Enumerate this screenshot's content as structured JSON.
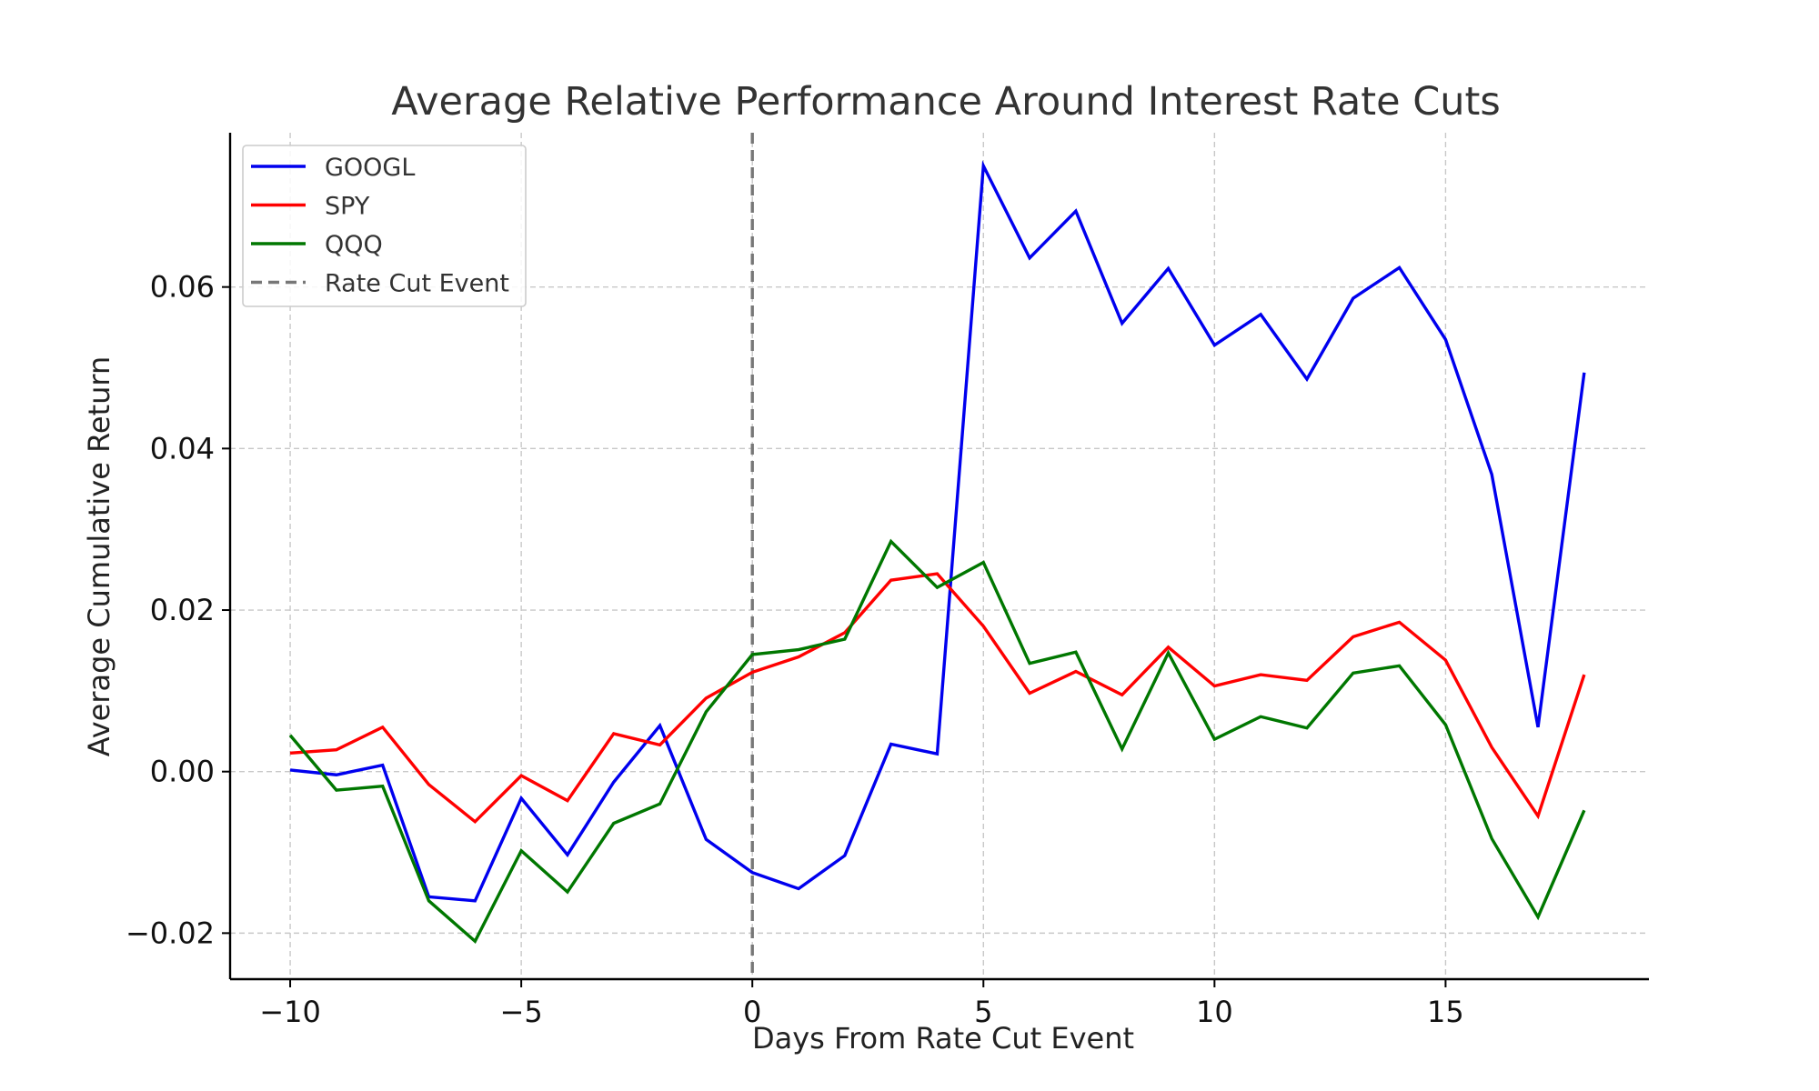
{
  "chart_data": {
    "type": "line",
    "title": "Average Relative Performance Around Interest Rate Cuts",
    "xlabel": "Days From Rate Cut Event",
    "ylabel": "Average Cumulative Return",
    "x": [
      -10,
      -9,
      -8,
      -7,
      -6,
      -5,
      -4,
      -3,
      -2,
      -1,
      0,
      1,
      2,
      3,
      4,
      5,
      6,
      7,
      8,
      9,
      10,
      11,
      12,
      13,
      14,
      15,
      16,
      17,
      18
    ],
    "xlim": [
      -11.3,
      19.4
    ],
    "ylim": [
      -0.0257,
      0.0791
    ],
    "xticks": [
      -10,
      -5,
      0,
      5,
      10,
      15
    ],
    "xtick_labels": [
      "−10",
      "−5",
      "0",
      "5",
      "10",
      "15"
    ],
    "yticks": [
      -0.02,
      0.0,
      0.02,
      0.04,
      0.06
    ],
    "ytick_labels": [
      "−0.02",
      "0.00",
      "0.02",
      "0.04",
      "0.06"
    ],
    "grid": true,
    "legend_position": "top-left",
    "series": [
      {
        "name": "GOOGL",
        "color": "#0000ee",
        "values": [
          0.0002,
          -0.0004,
          0.0008,
          -0.0155,
          -0.016,
          -0.0033,
          -0.0103,
          -0.0013,
          0.0057,
          -0.0084,
          -0.0125,
          -0.0145,
          -0.0104,
          0.0034,
          0.0022,
          0.075,
          0.0636,
          0.0694,
          0.0555,
          0.0623,
          0.0528,
          0.0566,
          0.0486,
          0.0586,
          0.0624,
          0.0535,
          0.0368,
          0.0055,
          0.0494
        ]
      },
      {
        "name": "SPY",
        "color": "#ff0000",
        "values": [
          0.0023,
          0.0027,
          0.0055,
          -0.0016,
          -0.0062,
          -0.0005,
          -0.0036,
          0.0047,
          0.0033,
          0.0091,
          0.0123,
          0.0142,
          0.0172,
          0.0237,
          0.0245,
          0.018,
          0.0097,
          0.0124,
          0.0095,
          0.0154,
          0.0106,
          0.012,
          0.0113,
          0.0167,
          0.0185,
          0.0138,
          0.003,
          -0.0055,
          0.012
        ]
      },
      {
        "name": "QQQ",
        "color": "#007700",
        "values": [
          0.0045,
          -0.0023,
          -0.0018,
          -0.016,
          -0.021,
          -0.0098,
          -0.0149,
          -0.0064,
          -0.004,
          0.0074,
          0.0145,
          0.0151,
          0.0164,
          0.0285,
          0.0228,
          0.0259,
          0.0134,
          0.0148,
          0.0028,
          0.0147,
          0.004,
          0.0068,
          0.0054,
          0.0122,
          0.0131,
          0.0058,
          -0.0083,
          -0.018,
          -0.0048
        ]
      }
    ],
    "annotations": [
      {
        "type": "vline",
        "x": 0,
        "label": "Rate Cut Event",
        "color": "#777777",
        "style": "dashed"
      }
    ]
  }
}
